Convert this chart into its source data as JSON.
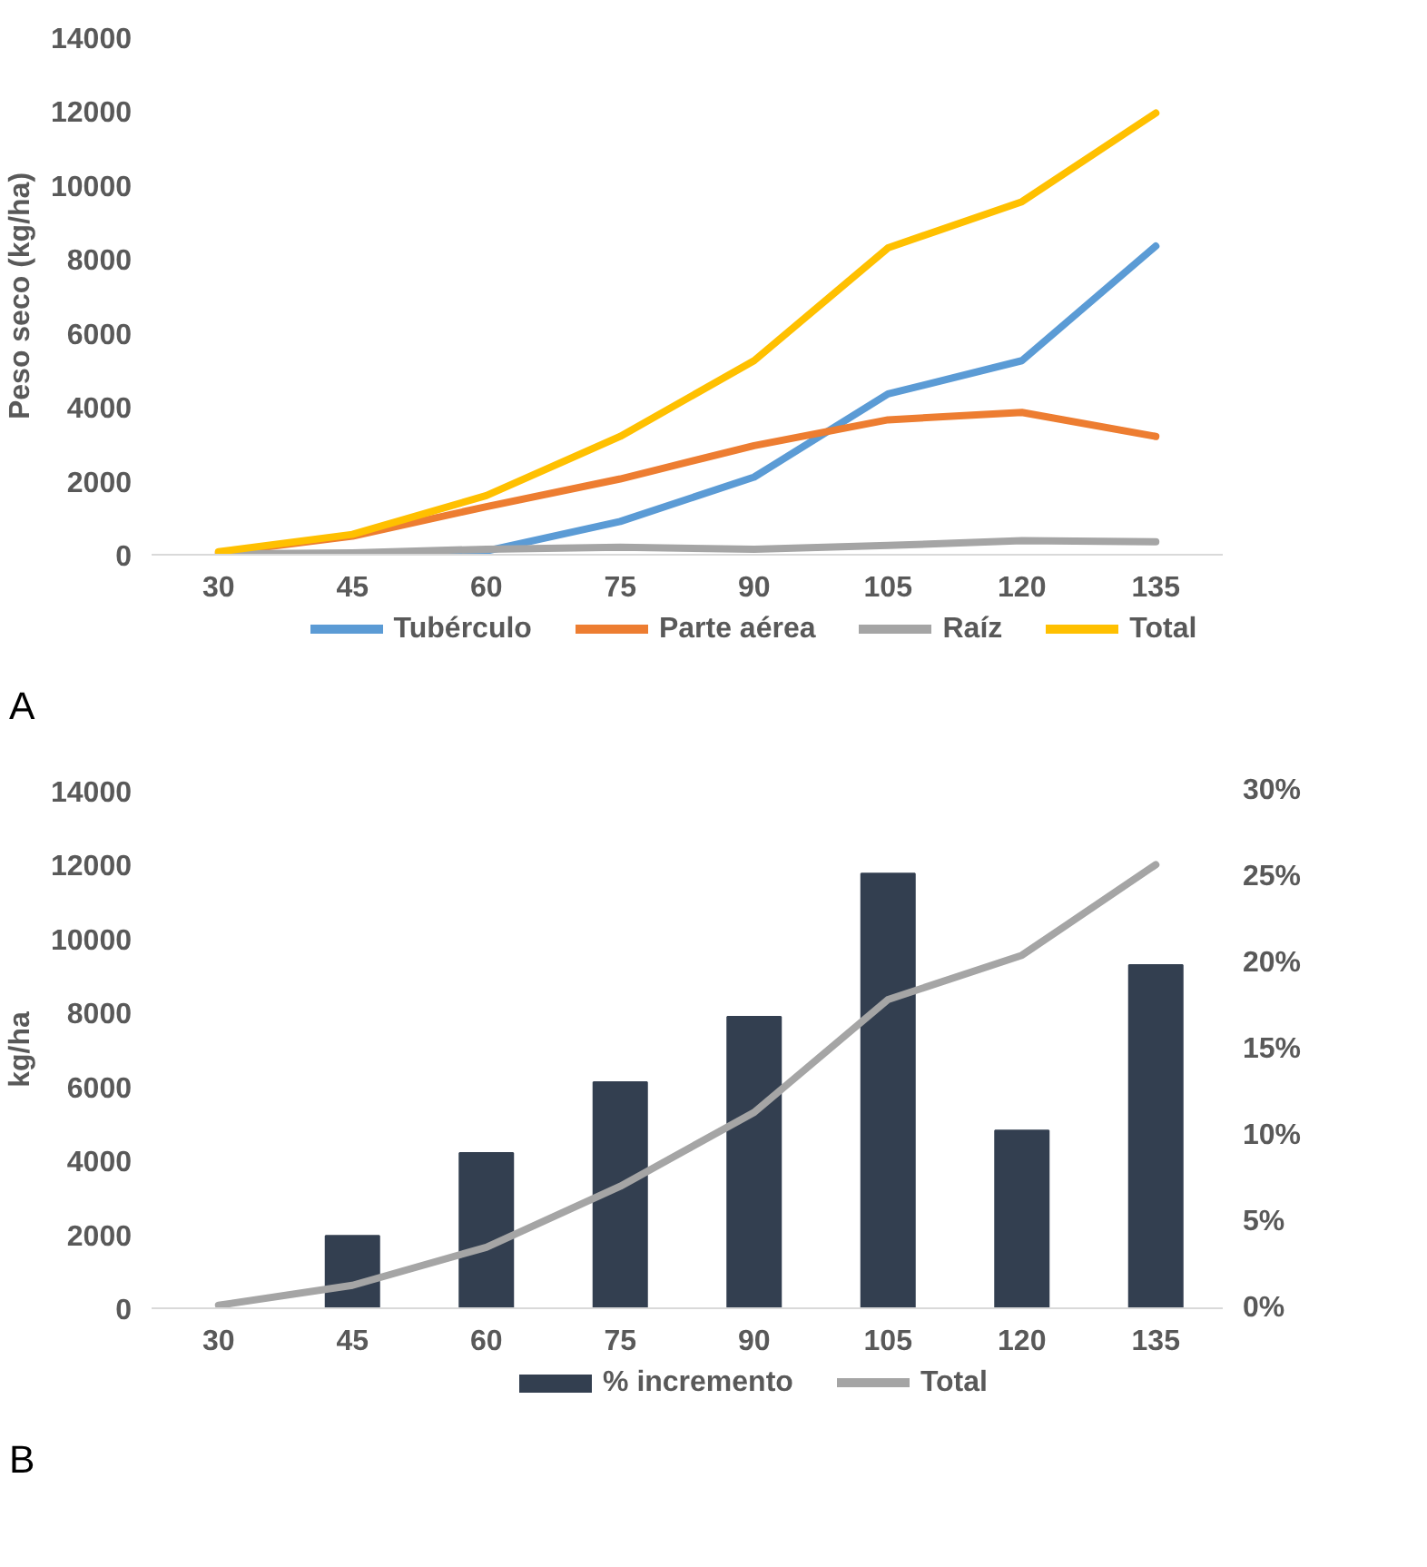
{
  "chart_data": [
    {
      "type": "line",
      "ylabel": "Peso seco (kg/ha)",
      "categories": [
        "30",
        "45",
        "60",
        "75",
        "90",
        "105",
        "120",
        "135"
      ],
      "ylim": [
        0,
        14000
      ],
      "yticks": [
        0,
        2000,
        4000,
        6000,
        8000,
        10000,
        12000,
        14000
      ],
      "legend": "bottom",
      "grid": false,
      "annotations": [
        "A"
      ],
      "series": [
        {
          "name": "Tubérculo",
          "color": "#5b9bd5",
          "values": [
            0,
            0,
            100,
            900,
            2100,
            4350,
            5250,
            8350
          ]
        },
        {
          "name": "Parte aérea",
          "color": "#ed7d31",
          "values": [
            50,
            500,
            1300,
            2050,
            2950,
            3650,
            3850,
            3200
          ]
        },
        {
          "name": "Raíz",
          "color": "#a5a5a5",
          "values": [
            20,
            50,
            150,
            200,
            150,
            250,
            380,
            350
          ]
        },
        {
          "name": "Total",
          "color": "#ffc000",
          "values": [
            80,
            550,
            1600,
            3200,
            5250,
            8300,
            9550,
            11950
          ]
        }
      ]
    },
    {
      "type": "line",
      "ylabel": "kg/ha",
      "categories": [
        "30",
        "45",
        "60",
        "75",
        "90",
        "105",
        "120",
        "135"
      ],
      "ylim": [
        0,
        14000
      ],
      "yticks": [
        0,
        2000,
        4000,
        6000,
        8000,
        10000,
        12000,
        14000
      ],
      "y2lim": [
        0,
        30
      ],
      "y2ticks": [
        {
          "value": 0,
          "label": "0%"
        },
        {
          "value": 5,
          "label": "5%"
        },
        {
          "value": 10,
          "label": "10%"
        },
        {
          "value": 15,
          "label": "15%"
        },
        {
          "value": 20,
          "label": "20%"
        },
        {
          "value": 25,
          "label": "25%"
        },
        {
          "value": 30,
          "label": "30%"
        }
      ],
      "legend": "bottom",
      "grid": false,
      "annotations": [
        "B"
      ],
      "series": [
        {
          "name": "% incremento",
          "type": "bar",
          "axis": "y2",
          "color": "#333f50",
          "values": [
            null,
            4.2,
            9.0,
            13.1,
            16.9,
            25.2,
            10.3,
            19.9
          ]
        },
        {
          "name": "Total",
          "color": "#a5a5a5",
          "values": [
            80,
            620,
            1650,
            3300,
            5300,
            8350,
            9550,
            12000
          ]
        }
      ]
    }
  ]
}
